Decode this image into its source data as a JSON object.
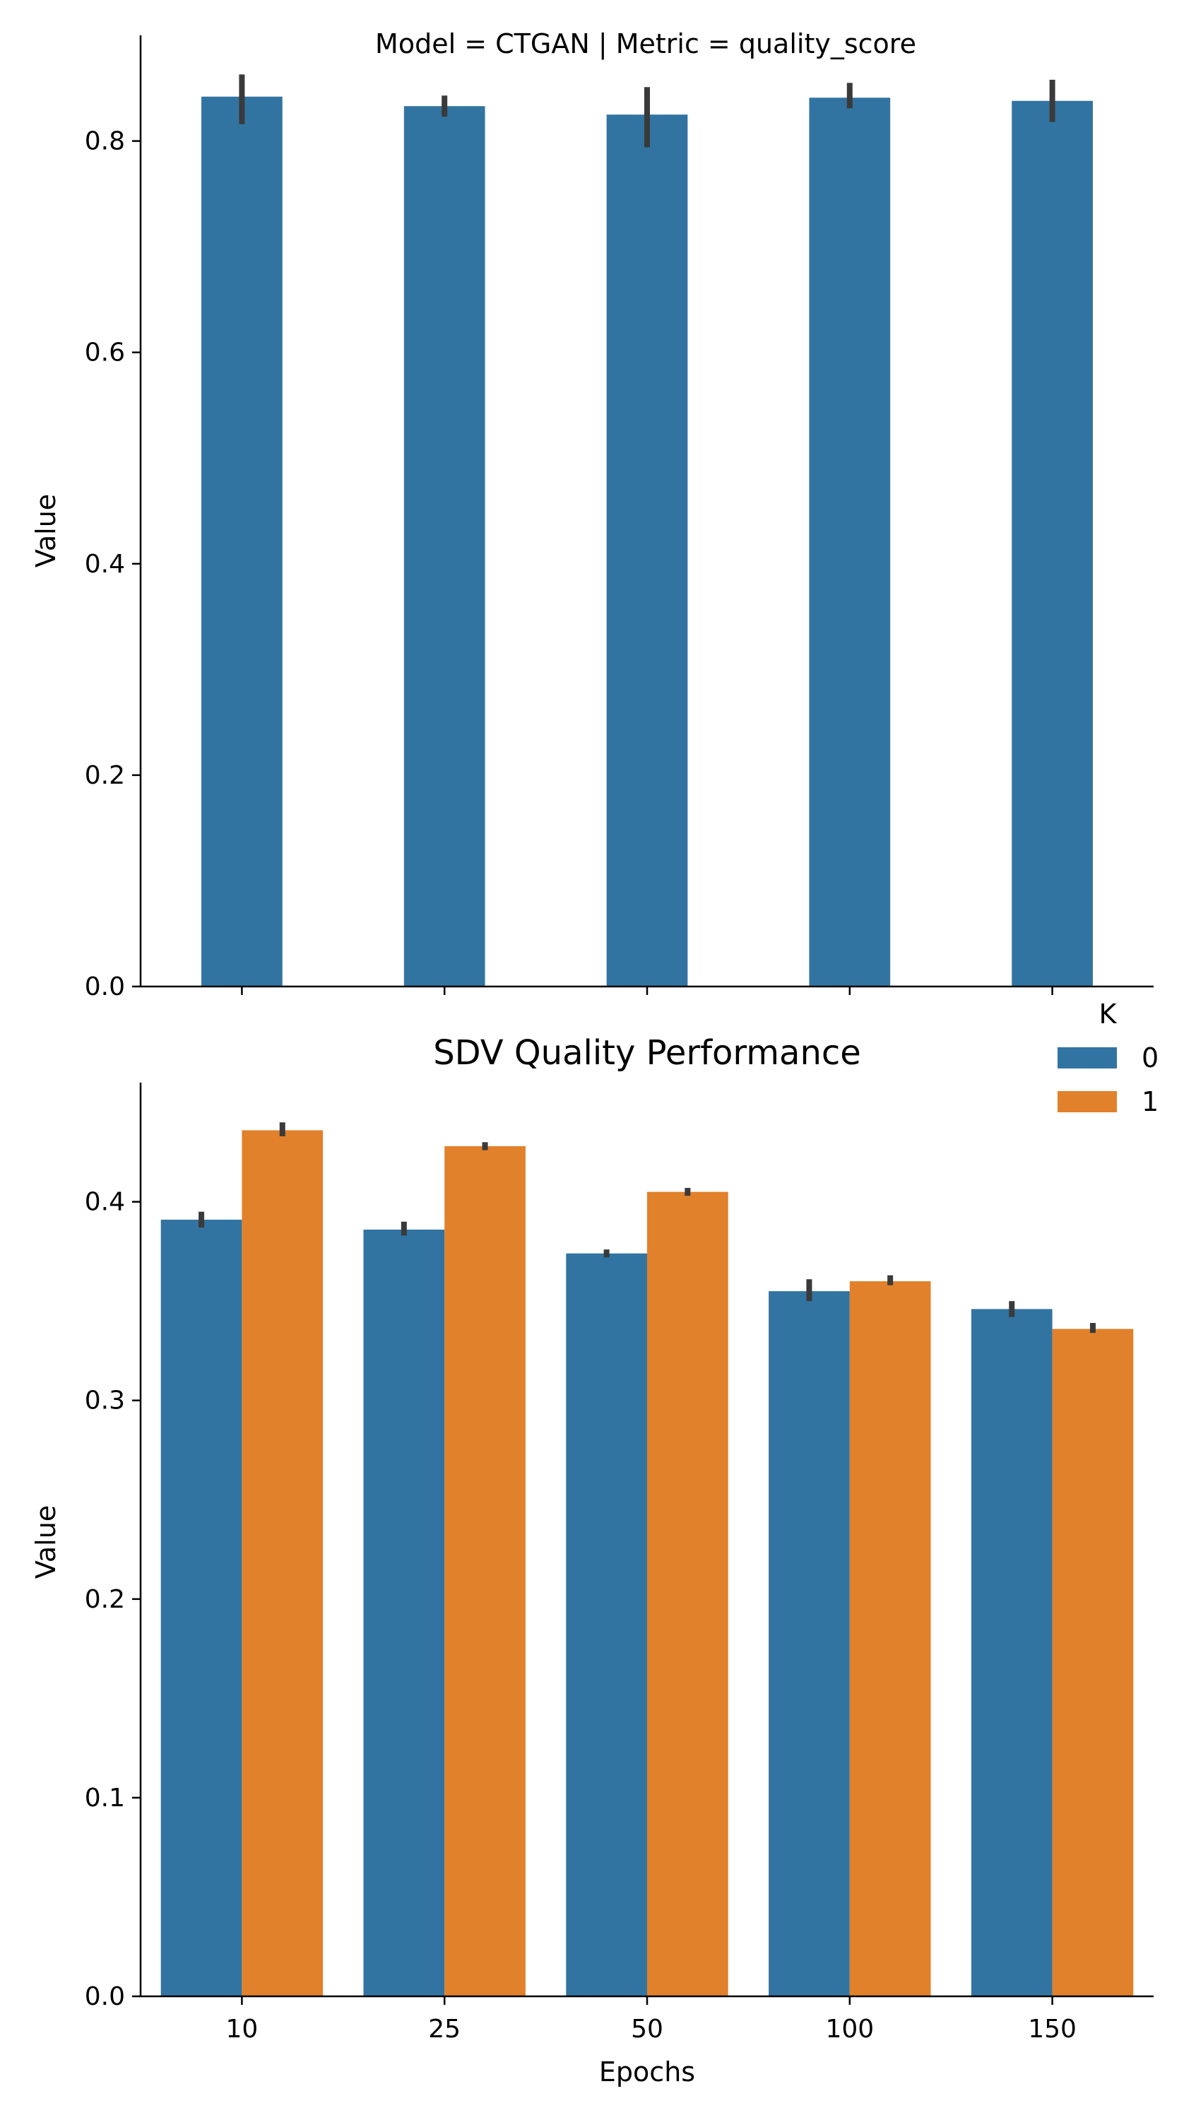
{
  "chart_data": [
    {
      "type": "bar",
      "panel_title": "Model = CTGAN | Metric = quality_score",
      "categories": [
        "10",
        "25",
        "50",
        "100",
        "150"
      ],
      "series": [
        {
          "values": [
            0.842,
            0.833,
            0.825,
            0.841,
            0.838
          ],
          "err_low": [
            0.816,
            0.823,
            0.794,
            0.831,
            0.818
          ],
          "err_high": [
            0.863,
            0.843,
            0.851,
            0.855,
            0.858
          ],
          "color": "#3274a1"
        }
      ],
      "ylabel": "Value",
      "xlabel": "",
      "ylim": [
        0,
        0.9
      ],
      "yticks": [
        "0.0",
        "0.2",
        "0.4",
        "0.6",
        "0.8"
      ],
      "grid": false,
      "show_xtick_labels": false
    },
    {
      "type": "bar",
      "title": "SDV Quality Performance",
      "categories": [
        "10",
        "25",
        "50",
        "100",
        "150"
      ],
      "series": [
        {
          "name": "0",
          "values": [
            0.391,
            0.386,
            0.374,
            0.355,
            0.346
          ],
          "err_low": [
            0.387,
            0.383,
            0.372,
            0.35,
            0.342
          ],
          "err_high": [
            0.395,
            0.39,
            0.376,
            0.361,
            0.35
          ],
          "color": "#3274a1"
        },
        {
          "name": "1",
          "values": [
            0.436,
            0.428,
            0.405,
            0.36,
            0.336
          ],
          "err_low": [
            0.433,
            0.426,
            0.403,
            0.358,
            0.334
          ],
          "err_high": [
            0.44,
            0.43,
            0.407,
            0.363,
            0.339
          ],
          "color": "#e1812c"
        }
      ],
      "legend_title": "K",
      "legend_position": "top-right",
      "xlabel": "Epochs",
      "ylabel": "Value",
      "ylim": [
        0,
        0.46
      ],
      "yticks": [
        "0.0",
        "0.1",
        "0.2",
        "0.3",
        "0.4"
      ],
      "grid": false,
      "show_xtick_labels": true
    }
  ]
}
